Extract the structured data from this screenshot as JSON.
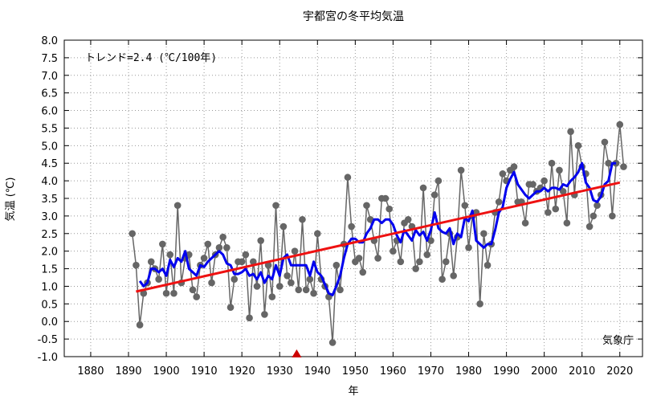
{
  "chart_data": {
    "type": "line",
    "title": "宇都宮の冬平均気温",
    "xlabel": "年",
    "ylabel": "気温 (℃)",
    "xlim": [
      1873,
      2026
    ],
    "ylim": [
      -1.0,
      8.0
    ],
    "xticks": [
      1880,
      1890,
      1900,
      1910,
      1920,
      1930,
      1940,
      1950,
      1960,
      1970,
      1980,
      1990,
      2000,
      2010,
      2020
    ],
    "yticks": [
      "-1.0",
      "-0.5",
      "0.0",
      "0.5",
      "1.0",
      "1.5",
      "2.0",
      "2.5",
      "3.0",
      "3.5",
      "4.0",
      "4.5",
      "5.0",
      "5.5",
      "6.0",
      "6.5",
      "7.0",
      "7.5",
      "8.0"
    ],
    "grid": true,
    "annotation": "トレンド=2.4 (℃/100年)",
    "credit": "気象庁",
    "marker_year": 1934.5,
    "colors": {
      "annual": "#666666",
      "smooth": "#0000ee",
      "trend": "#ee1111",
      "marker": "#cc0000",
      "frame": "#000000",
      "grid": "#999999"
    },
    "series": [
      {
        "role": "annual",
        "x": [
          1891,
          1892,
          1893,
          1894,
          1895,
          1896,
          1897,
          1898,
          1899,
          1900,
          1901,
          1902,
          1903,
          1904,
          1905,
          1906,
          1907,
          1908,
          1909,
          1910,
          1911,
          1912,
          1913,
          1914,
          1915,
          1916,
          1917,
          1918,
          1919,
          1920,
          1921,
          1922,
          1923,
          1924,
          1925,
          1926,
          1927,
          1928,
          1929,
          1930,
          1931,
          1932,
          1933,
          1934,
          1935,
          1936,
          1937,
          1938,
          1939,
          1940,
          1941,
          1942,
          1943,
          1944,
          1945,
          1946,
          1947,
          1948,
          1949,
          1950,
          1951,
          1952,
          1953,
          1954,
          1955,
          1956,
          1957,
          1958,
          1959,
          1960,
          1961,
          1962,
          1963,
          1964,
          1965,
          1966,
          1967,
          1968,
          1969,
          1970,
          1971,
          1972,
          1973,
          1974,
          1975,
          1976,
          1977,
          1978,
          1979,
          1980,
          1981,
          1982,
          1983,
          1984,
          1985,
          1986,
          1987,
          1988,
          1989,
          1990,
          1991,
          1992,
          1993,
          1994,
          1995,
          1996,
          1997,
          1998,
          1999,
          2000,
          2001,
          2002,
          2003,
          2004,
          2005,
          2006,
          2007,
          2008,
          2009,
          2010,
          2011,
          2012,
          2013,
          2014,
          2015,
          2016,
          2017,
          2018,
          2019,
          2020,
          2021
        ],
        "values": [
          2.5,
          1.6,
          -0.1,
          0.8,
          1.1,
          1.7,
          1.5,
          1.2,
          2.2,
          0.8,
          1.9,
          0.8,
          3.3,
          1.1,
          1.8,
          1.9,
          0.9,
          0.7,
          1.6,
          1.8,
          2.2,
          1.1,
          1.9,
          2.1,
          2.4,
          2.1,
          0.4,
          1.2,
          1.7,
          1.7,
          1.9,
          0.1,
          1.7,
          1.0,
          2.3,
          0.2,
          1.6,
          0.7,
          3.3,
          1.0,
          2.7,
          1.3,
          1.1,
          2.0,
          0.9,
          2.9,
          0.9,
          1.2,
          0.8,
          2.5,
          1.2,
          1.0,
          0.7,
          -0.6,
          1.6,
          0.9,
          2.2,
          4.1,
          2.7,
          1.7,
          1.8,
          1.4,
          3.3,
          2.9,
          2.3,
          1.8,
          3.5,
          3.5,
          3.2,
          2.0,
          2.3,
          1.7,
          2.8,
          2.9,
          2.7,
          1.5,
          1.7,
          3.8,
          1.9,
          2.3,
          3.6,
          4.0,
          1.2,
          1.7,
          2.5,
          1.3,
          2.4,
          4.3,
          3.3,
          2.1,
          3.0,
          3.1,
          0.5,
          2.5,
          1.6,
          2.2,
          3.1,
          3.4,
          4.2,
          4.0,
          4.3,
          4.4,
          3.4,
          3.4,
          2.8,
          3.9,
          3.9,
          3.7,
          3.8,
          4.0,
          3.1,
          4.5,
          3.2,
          4.3,
          3.7,
          2.8,
          5.4,
          3.6,
          5.0,
          4.4,
          4.2,
          2.7,
          3.0,
          3.3,
          3.6,
          5.1,
          4.5,
          3.0,
          4.5,
          5.6,
          4.4
        ]
      },
      {
        "role": "smooth",
        "x": [
          1893,
          1894,
          1895,
          1896,
          1897,
          1898,
          1899,
          1900,
          1901,
          1902,
          1903,
          1904,
          1905,
          1906,
          1907,
          1908,
          1909,
          1910,
          1911,
          1912,
          1913,
          1914,
          1915,
          1916,
          1917,
          1918,
          1919,
          1920,
          1921,
          1922,
          1923,
          1924,
          1925,
          1926,
          1927,
          1928,
          1929,
          1930,
          1931,
          1932,
          1933,
          1934,
          1935,
          1936,
          1937,
          1938,
          1939,
          1940,
          1941,
          1942,
          1943,
          1944,
          1945,
          1946,
          1947,
          1948,
          1949,
          1950,
          1951,
          1952,
          1953,
          1954,
          1955,
          1956,
          1957,
          1958,
          1959,
          1960,
          1961,
          1962,
          1963,
          1964,
          1965,
          1966,
          1967,
          1968,
          1969,
          1970,
          1971,
          1972,
          1973,
          1974,
          1975,
          1976,
          1977,
          1978,
          1979,
          1980,
          1981,
          1982,
          1983,
          1984,
          1985,
          1986,
          1987,
          1988,
          1989,
          1990,
          1991,
          1992,
          1993,
          1994,
          1995,
          1996,
          1997,
          1998,
          1999,
          2000,
          2001,
          2002,
          2003,
          2004,
          2005,
          2006,
          2007,
          2008,
          2009,
          2010,
          2011,
          2012,
          2013,
          2014,
          2015,
          2016,
          2017,
          2018,
          2019
        ],
        "values": [
          1.15,
          1.0,
          1.1,
          1.5,
          1.5,
          1.4,
          1.5,
          1.3,
          1.75,
          1.55,
          1.8,
          1.7,
          2.0,
          1.5,
          1.4,
          1.3,
          1.6,
          1.55,
          1.7,
          1.8,
          1.9,
          2.0,
          1.9,
          1.65,
          1.6,
          1.35,
          1.35,
          1.4,
          1.5,
          1.3,
          1.35,
          1.2,
          1.4,
          1.1,
          1.3,
          1.2,
          1.6,
          1.3,
          1.8,
          1.9,
          1.6,
          1.6,
          1.6,
          1.6,
          1.6,
          1.3,
          1.7,
          1.4,
          1.3,
          1.05,
          0.8,
          0.75,
          1.0,
          1.3,
          1.8,
          2.2,
          2.35,
          2.35,
          2.25,
          2.25,
          2.5,
          2.65,
          2.9,
          2.9,
          2.8,
          2.9,
          2.9,
          2.75,
          2.45,
          2.25,
          2.6,
          2.45,
          2.3,
          2.6,
          2.45,
          2.55,
          2.3,
          2.6,
          3.1,
          2.65,
          2.55,
          2.5,
          2.65,
          2.2,
          2.5,
          2.4,
          2.95,
          2.85,
          3.15,
          2.3,
          2.2,
          2.1,
          2.2,
          2.2,
          2.6,
          3.1,
          3.25,
          3.8,
          4.05,
          4.25,
          3.9,
          3.75,
          3.6,
          3.5,
          3.6,
          3.7,
          3.7,
          3.8,
          3.7,
          3.8,
          3.8,
          3.75,
          3.9,
          3.85,
          4.0,
          4.1,
          4.25,
          4.5,
          3.95,
          3.8,
          3.45,
          3.4,
          3.55,
          3.9,
          4.0,
          4.5,
          4.5
        ]
      },
      {
        "role": "trend",
        "x": [
          1892,
          2020
        ],
        "values": [
          0.85,
          3.95
        ]
      }
    ]
  }
}
